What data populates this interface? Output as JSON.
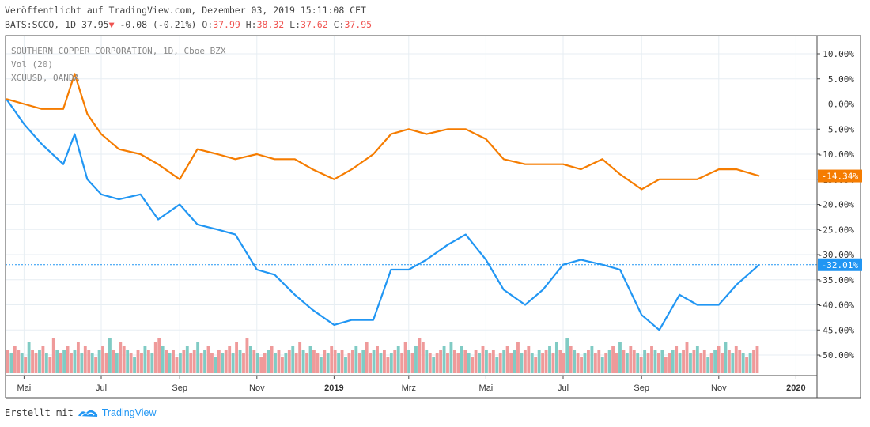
{
  "header": {
    "published": "Veröffentlicht auf TradingView.com, Dezember 03, 2019 15:11:08 CET",
    "symbol": "BATS:SCCO, 1D",
    "last": "37.95",
    "change": "-0.08 (-0.21%)",
    "o_label": "O:",
    "o_value": "37.99",
    "h_label": "H:",
    "h_value": "38.32",
    "l_label": "L:",
    "l_value": "37.62",
    "c_label": "C:",
    "c_value": "37.95"
  },
  "legend": {
    "line1": "SOUTHERN COPPER CORPORATION, 1D, Cboe BZX",
    "line2": "Vol (20)",
    "line3": "XCUUSD, OANDA"
  },
  "footer": {
    "created": "Erstellt mit",
    "brand": "TradingView"
  },
  "colors": {
    "scco": "#2196f3",
    "xcu": "#f57c00",
    "vol_up": "#80cbc4",
    "vol_down": "#ef9a9a",
    "grid": "#e7eef3"
  },
  "chart_data": {
    "type": "line",
    "y_unit": "%",
    "ylim": [
      -55,
      13
    ],
    "x": [
      "2018-04-17",
      "2018-05-01",
      "2018-05-15",
      "2018-06-01",
      "2018-06-10",
      "2018-06-20",
      "2018-07-01",
      "2018-07-15",
      "2018-08-01",
      "2018-08-15",
      "2018-09-01",
      "2018-09-15",
      "2018-10-01",
      "2018-10-15",
      "2018-11-01",
      "2018-11-15",
      "2018-12-01",
      "2018-12-15",
      "2019-01-01",
      "2019-01-15",
      "2019-02-01",
      "2019-02-15",
      "2019-03-01",
      "2019-03-15",
      "2019-04-01",
      "2019-04-15",
      "2019-05-01",
      "2019-05-15",
      "2019-06-01",
      "2019-06-15",
      "2019-07-01",
      "2019-07-15",
      "2019-08-01",
      "2019-08-15",
      "2019-09-01",
      "2019-09-15",
      "2019-10-01",
      "2019-10-15",
      "2019-11-01",
      "2019-11-15",
      "2019-12-03"
    ],
    "series": [
      {
        "name": "SOUTHERN COPPER CORPORATION, 1D, Cboe BZX",
        "color": "#2196f3",
        "values": [
          1,
          -4,
          -8,
          -12,
          -6,
          -15,
          -18,
          -19,
          -18,
          -23,
          -20,
          -24,
          -25,
          -26,
          -33,
          -34,
          -38,
          -41,
          -44,
          -43,
          -43,
          -33,
          -33,
          -31,
          -28,
          -26,
          -31,
          -37,
          -40,
          -37,
          -32,
          -31,
          -32,
          -33,
          -42,
          -45,
          -38,
          -40,
          -40,
          -36,
          -32
        ]
      },
      {
        "name": "XCUUSD, OANDA",
        "color": "#f57c00",
        "values": [
          1,
          0,
          -1,
          -1,
          6,
          -2,
          -6,
          -9,
          -10,
          -12,
          -15,
          -9,
          -10,
          -11,
          -10,
          -11,
          -11,
          -13,
          -15,
          -13,
          -10,
          -6,
          -5,
          -6,
          -5,
          -5,
          -7,
          -11,
          -12,
          -12,
          -12,
          -13,
          -11,
          -14,
          -17,
          -15,
          -15,
          -15,
          -13,
          -13,
          -14.34
        ]
      }
    ],
    "last_labels": [
      "-14.34%",
      "-32.01%"
    ],
    "y_ticks": [
      "10.00%",
      "5.00%",
      "0.00%",
      "-5.00%",
      "-10.00%",
      "-15.00%",
      "-20.00%",
      "-25.00%",
      "-30.00%",
      "-35.00%",
      "-40.00%",
      "-45.00%",
      "-50.00%"
    ],
    "x_ticks": [
      "Mai",
      "Jul",
      "Sep",
      "Nov",
      "2019",
      "Mrz",
      "Mai",
      "Jul",
      "Sep",
      "Nov",
      "2020"
    ],
    "volume": {
      "name": "Vol (20)",
      "values": [
        6,
        5,
        7,
        6,
        5,
        4,
        8,
        6,
        5,
        6,
        7,
        5,
        4,
        9,
        6,
        5,
        6,
        7,
        5,
        6,
        8,
        5,
        7,
        6,
        5,
        4,
        6,
        7,
        5,
        9,
        6,
        5,
        8,
        7,
        6,
        5,
        4,
        6,
        5,
        7,
        6,
        5,
        8,
        9,
        7,
        6,
        5,
        6,
        4,
        5,
        6,
        7,
        5,
        6,
        8,
        5,
        6,
        7,
        5,
        4,
        6,
        5,
        6,
        7,
        5,
        8,
        6,
        5,
        9,
        7,
        6,
        5,
        4,
        5,
        6,
        7,
        5,
        6,
        4,
        5,
        6,
        7,
        5,
        8,
        6,
        5,
        7,
        6,
        5,
        4,
        6,
        5,
        7,
        6,
        5,
        6,
        4,
        5,
        6,
        7,
        5,
        6,
        8,
        5,
        6,
        7,
        5,
        6,
        4,
        5,
        6,
        7,
        5,
        8,
        6,
        5,
        7,
        9,
        8,
        6,
        5,
        4,
        5,
        6,
        7,
        5,
        8,
        6,
        5,
        7,
        6,
        5,
        4,
        6,
        5,
        7,
        6,
        5,
        6,
        4,
        5,
        6,
        7,
        5,
        6,
        8,
        5,
        6,
        7,
        5,
        4,
        6,
        5,
        6,
        7,
        5,
        8,
        6,
        5,
        9,
        7,
        6,
        5,
        4,
        5,
        6,
        7,
        5,
        6,
        4,
        5,
        6,
        7,
        5,
        8,
        6,
        5,
        7,
        6,
        5,
        4,
        6,
        5,
        7,
        6,
        5,
        6,
        4,
        5,
        6,
        7,
        5,
        6,
        8,
        5,
        6,
        7,
        5,
        6,
        4,
        5,
        6,
        7,
        5,
        8,
        6,
        5,
        7,
        6,
        5,
        4,
        5,
        6,
        7
      ],
      "directions": "mixed"
    }
  }
}
